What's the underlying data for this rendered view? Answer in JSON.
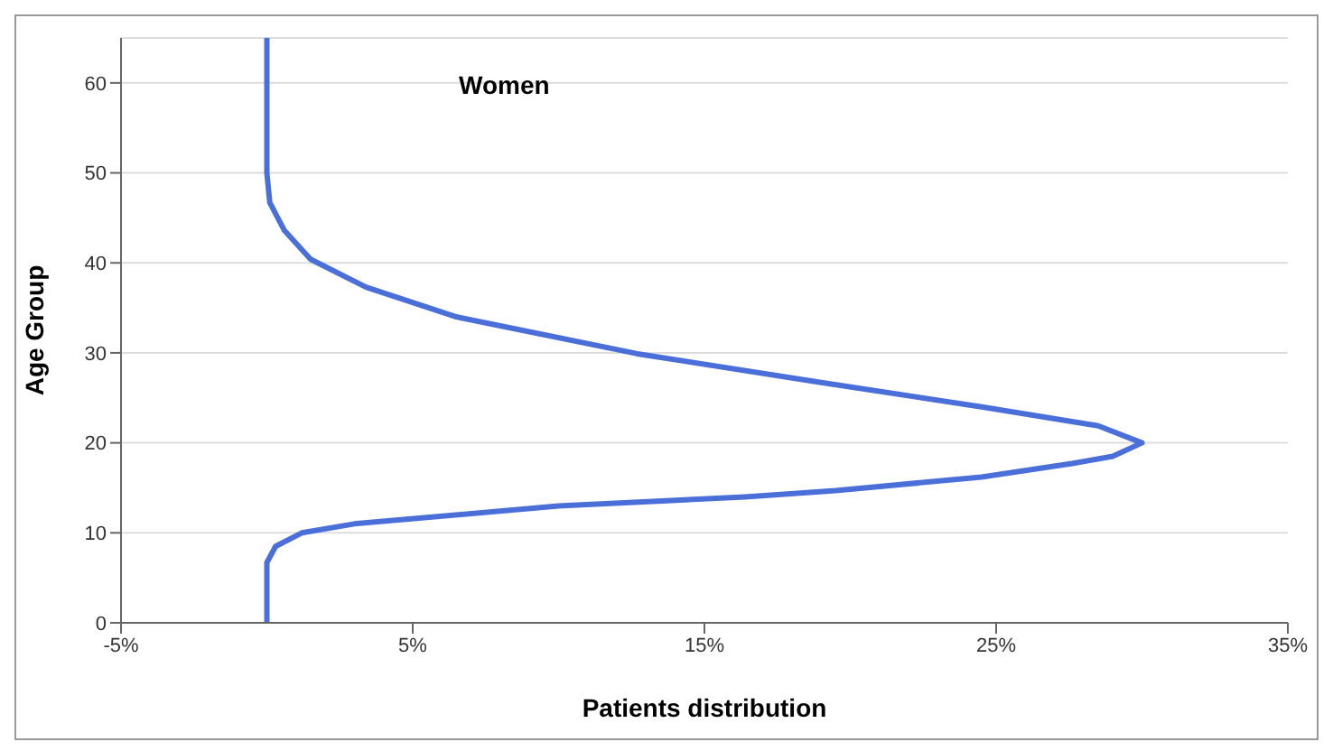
{
  "chart_data": {
    "type": "line",
    "title": "Women",
    "xlabel": "Patients distribution",
    "ylabel": "Age Group",
    "xlim": [
      -5,
      35
    ],
    "xticks": [
      {
        "value": -5,
        "label": "-5%"
      },
      {
        "value": 5,
        "label": "5%"
      },
      {
        "value": 15,
        "label": "15%"
      },
      {
        "value": 25,
        "label": "25%"
      },
      {
        "value": 35,
        "label": "35%"
      }
    ],
    "ylim": [
      0,
      65
    ],
    "yticks": [
      0,
      10,
      20,
      30,
      40,
      50,
      60
    ],
    "grid": "y",
    "marker": "none",
    "line_style": "solid",
    "series": [
      {
        "color": "#4a6fd8",
        "x": [
          0,
          0,
          0.3,
          1.2,
          3,
          10,
          16.4,
          19.5,
          24.5,
          27.6,
          29,
          30,
          28.5,
          24.5,
          19,
          12.7,
          6.5,
          3.4,
          1.5,
          0.6,
          0.1,
          0,
          0
        ],
        "values": [
          0,
          6.7,
          8.5,
          10,
          11,
          13,
          14,
          14.7,
          16.2,
          17.7,
          18.5,
          20,
          21.9,
          24,
          26.7,
          29.9,
          34,
          37.3,
          40.4,
          43.6,
          46.7,
          50,
          65
        ]
      }
    ]
  }
}
